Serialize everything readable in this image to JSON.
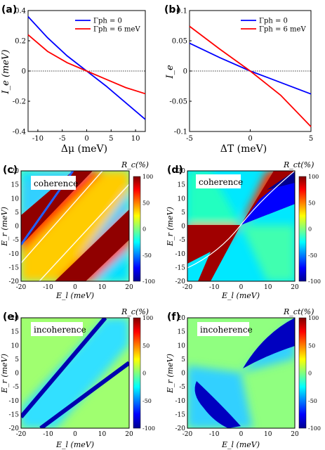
{
  "chart_data": [
    {
      "panel": "(a)",
      "type": "line",
      "xlabel": "Δμ  (meV)",
      "ylabel": "I_e (meV)",
      "xlim": [
        -12,
        12
      ],
      "ylim": [
        -0.4,
        0.4
      ],
      "xticks": [
        "-10",
        "-5",
        "0",
        "5",
        "10"
      ],
      "yticks": [
        "0.4",
        "0.2",
        "0",
        "-0.2",
        "-0.4"
      ],
      "legend_position": "top-right",
      "zero_line": true,
      "series": [
        {
          "name": "Γph = 0",
          "color": "#0000ff",
          "x": [
            -12,
            -8,
            -4,
            0,
            4,
            8,
            12
          ],
          "y": [
            0.36,
            0.22,
            0.1,
            0.0,
            -0.1,
            -0.21,
            -0.32
          ]
        },
        {
          "name": "Γph = 6 meV",
          "color": "#ff0000",
          "x": [
            -12,
            -8,
            -4,
            0,
            4,
            8,
            12
          ],
          "y": [
            0.24,
            0.13,
            0.055,
            0.0,
            -0.055,
            -0.11,
            -0.15
          ]
        }
      ]
    },
    {
      "panel": "(b)",
      "type": "line",
      "xlabel": "ΔT (meV)",
      "ylabel": "I_e",
      "xlim": [
        -5,
        5
      ],
      "ylim": [
        -0.1,
        0.1
      ],
      "xticks": [
        "-5",
        "0",
        "5"
      ],
      "yticks": [
        "0.1",
        "0.05",
        "0",
        "-0.05",
        "-0.1"
      ],
      "legend_position": "top-right",
      "zero_line": true,
      "series": [
        {
          "name": "Γph = 0",
          "color": "#0000ff",
          "x": [
            -5,
            -2.5,
            0,
            2.5,
            5
          ],
          "y": [
            0.046,
            0.022,
            0.0,
            -0.019,
            -0.038
          ]
        },
        {
          "name": "Γph = 6 meV",
          "color": "#ff0000",
          "x": [
            -5,
            -2.5,
            0,
            2.5,
            5
          ],
          "y": [
            0.074,
            0.036,
            0.0,
            -0.04,
            -0.092
          ]
        }
      ]
    },
    {
      "panel": "(c)",
      "type": "heatmap",
      "annotation": "coherence",
      "xlabel": "E_l (meV)",
      "ylabel": "E_r (meV)",
      "colorbar_label": "R_c(%)",
      "xlim": [
        -20,
        20
      ],
      "ylim": [
        -20,
        20
      ],
      "clim": [
        -100,
        100
      ]
    },
    {
      "panel": "(d)",
      "type": "heatmap",
      "annotation": "coherence",
      "xlabel": "E_l (meV)",
      "ylabel": "E_r (meV)",
      "colorbar_label": "R_ct(%)",
      "xlim": [
        -20,
        20
      ],
      "ylim": [
        -20,
        20
      ],
      "clim": [
        -100,
        100
      ]
    },
    {
      "panel": "(e)",
      "type": "heatmap",
      "annotation": "incoherence",
      "xlabel": "E_l (meV)",
      "ylabel": "E_r (meV)",
      "colorbar_label": "R_c(%)",
      "xlim": [
        -20,
        20
      ],
      "ylim": [
        -20,
        20
      ],
      "clim": [
        -100,
        100
      ]
    },
    {
      "panel": "(f)",
      "type": "heatmap",
      "annotation": "incoherence",
      "xlabel": "E_l (meV)",
      "ylabel": "E_r (meV)",
      "colorbar_label": "R_ct(%)",
      "xlim": [
        -20,
        20
      ],
      "ylim": [
        -20,
        20
      ],
      "clim": [
        -100,
        100
      ]
    }
  ],
  "heat_xticks": [
    "-20",
    "-10",
    "0",
    "10",
    "20"
  ],
  "heat_yticks": [
    "20",
    "15",
    "10",
    "5",
    "0",
    "-5",
    "-10",
    "-15",
    "-20"
  ],
  "cbar_ticks": [
    "100",
    "50",
    "0",
    "-50",
    "-100"
  ],
  "colors": {
    "blue": "#0000ff",
    "red": "#ff0000",
    "axis": "#000000"
  }
}
